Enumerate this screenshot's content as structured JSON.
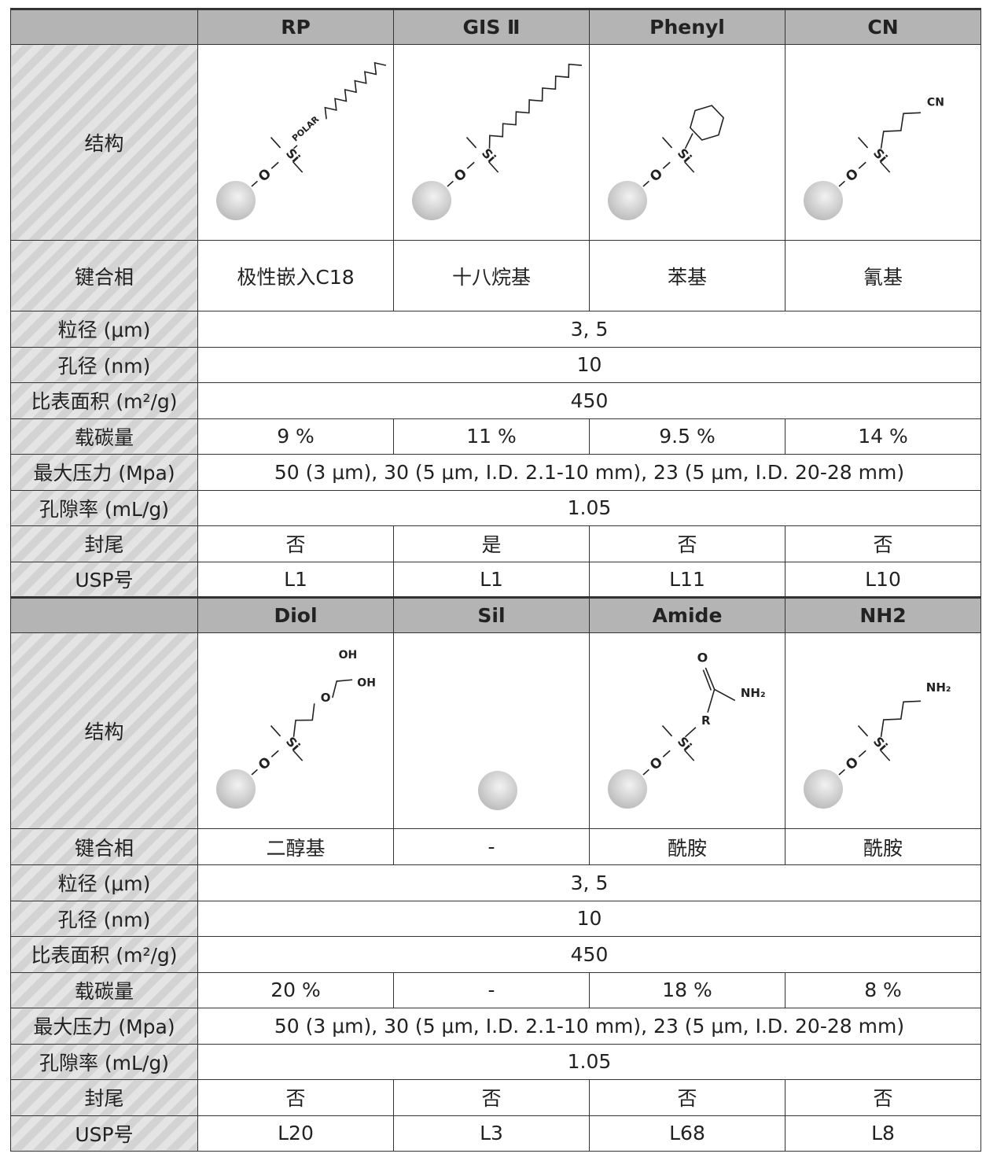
{
  "sections": [
    {
      "columns": [
        "RP",
        "GIS Ⅱ",
        "Phenyl",
        "CN"
      ],
      "structures": [
        "rp",
        "gis",
        "phenyl",
        "cn"
      ],
      "rows": [
        {
          "label": "键合相",
          "values": [
            "极性嵌入C18",
            "十八烷基",
            "苯基",
            "氰基"
          ]
        },
        {
          "label": "粒径 (μm)",
          "values": [
            "3, 5"
          ]
        },
        {
          "label": "孔径 (nm)",
          "values": [
            "10"
          ]
        },
        {
          "label": "比表面积 (m²/g)",
          "values": [
            "450"
          ]
        },
        {
          "label": "载碳量",
          "values": [
            "9 %",
            "11 %",
            "9.5 %",
            "14 %"
          ]
        },
        {
          "label": "最大压力 (Mpa)",
          "values": [
            "50 (3 μm), 30 (5 μm, I.D. 2.1-10 mm), 23 (5 μm, I.D. 20-28 mm)"
          ]
        },
        {
          "label": "孔隙率 (mL/g)",
          "values": [
            "1.05"
          ]
        },
        {
          "label": "封尾",
          "values": [
            "否",
            "是",
            "否",
            "否"
          ]
        },
        {
          "label": "USP号",
          "values": [
            "L1",
            "L1",
            "L11",
            "L10"
          ]
        }
      ]
    },
    {
      "columns": [
        "Diol",
        "Sil",
        "Amide",
        "NH2"
      ],
      "structures": [
        "diol",
        "sil",
        "amide",
        "nh2"
      ],
      "rows": [
        {
          "label": "键合相",
          "values": [
            "二醇基",
            "-",
            "酰胺",
            "酰胺"
          ]
        },
        {
          "label": "粒径 (μm)",
          "values": [
            "3, 5"
          ]
        },
        {
          "label": "孔径 (nm)",
          "values": [
            "10"
          ]
        },
        {
          "label": "比表面积 (m²/g)",
          "values": [
            "450"
          ]
        },
        {
          "label": "载碳量",
          "values": [
            "20 %",
            "-",
            "18 %",
            "8 %"
          ]
        },
        {
          "label": "最大压力 (Mpa)",
          "values": [
            "50 (3 μm), 30 (5 μm, I.D. 2.1-10 mm), 23 (5 μm, I.D. 20-28 mm)"
          ]
        },
        {
          "label": "孔隙率 (mL/g)",
          "values": [
            "1.05"
          ]
        },
        {
          "label": "封尾",
          "values": [
            "否",
            "否",
            "否",
            "否"
          ]
        },
        {
          "label": "USP号",
          "values": [
            "L20",
            "L3",
            "L68",
            "L8"
          ]
        }
      ]
    }
  ],
  "structure_row_label": "结构",
  "structure_labels": {
    "o": "O",
    "si": "Si",
    "polar": "POLAR",
    "cn": "CN",
    "oh": "OH",
    "nh2": "NH₂",
    "r": "R"
  }
}
